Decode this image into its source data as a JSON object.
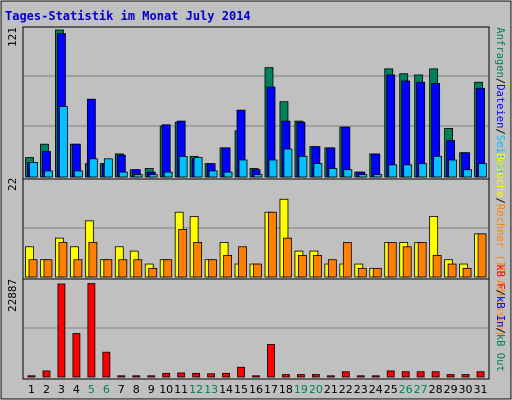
{
  "title": "Tages-Statistik im Monat July 2014",
  "colors": {
    "background": "#C0C0C0",
    "page_bg": "#FFFFFF",
    "title": "#0000CC",
    "hits": "#00805C",
    "files": "#0000FF",
    "pages": "#00C0FF",
    "visits": "#FFFF00",
    "sites": "#FF8000",
    "kbin": "#0000FF",
    "kbout": "#00805C",
    "kbf": "#FF0000",
    "weekend_day": "#00805C",
    "weekday_day": "#000000"
  },
  "chart_data": [
    {
      "type": "bar",
      "title": "Tages-Statistik im Monat July 2014",
      "panel": "top",
      "ymax_label": "121",
      "ylim": [
        0,
        121
      ],
      "categories": [
        "1",
        "2",
        "3",
        "4",
        "5",
        "6",
        "7",
        "8",
        "9",
        "10",
        "11",
        "12",
        "13",
        "14",
        "15",
        "16",
        "17",
        "18",
        "19",
        "20",
        "21",
        "22",
        "23",
        "24",
        "25",
        "26",
        "27",
        "28",
        "29",
        "30",
        "31"
      ],
      "side_label_parts": [
        "Anfragen",
        "/",
        "Dateien",
        "/",
        "Seiten"
      ],
      "series": [
        {
          "name": "Anfragen",
          "values": [
            16,
            27,
            121,
            27,
            11,
            11,
            19,
            6,
            7,
            42,
            45,
            17,
            11,
            24,
            38,
            7,
            90,
            62,
            46,
            25,
            24,
            41,
            4,
            19,
            89,
            85,
            84,
            89,
            40,
            20,
            78
          ]
        },
        {
          "name": "Dateien",
          "values": [
            12,
            21,
            118,
            27,
            64,
            11,
            18,
            6,
            4,
            43,
            46,
            15,
            11,
            24,
            55,
            6,
            74,
            46,
            45,
            25,
            24,
            41,
            4,
            19,
            84,
            79,
            78,
            77,
            30,
            20,
            73
          ]
        },
        {
          "name": "Seiten",
          "values": [
            12,
            5,
            58,
            5,
            15,
            15,
            4,
            2,
            2,
            4,
            17,
            16,
            5,
            4,
            14,
            2,
            14,
            23,
            17,
            11,
            7,
            6,
            2,
            2,
            10,
            10,
            11,
            17,
            14,
            6,
            11
          ]
        }
      ]
    },
    {
      "type": "bar",
      "panel": "middle",
      "ymax_label": "22",
      "ylim": [
        0,
        22
      ],
      "categories": [
        "1",
        "2",
        "3",
        "4",
        "5",
        "6",
        "7",
        "8",
        "9",
        "10",
        "11",
        "12",
        "13",
        "14",
        "15",
        "16",
        "17",
        "18",
        "19",
        "20",
        "21",
        "22",
        "23",
        "24",
        "25",
        "26",
        "27",
        "28",
        "29",
        "30",
        "31"
      ],
      "side_label_parts": [
        "Besuche",
        "/",
        "Rechner (IP-Adressen)"
      ],
      "series": [
        {
          "name": "Besuche",
          "values": [
            7,
            4,
            9,
            7,
            13,
            4,
            7,
            6,
            3,
            4,
            15,
            14,
            4,
            8,
            3,
            3,
            15,
            18,
            6,
            6,
            3,
            3,
            3,
            2,
            8,
            8,
            8,
            14,
            4,
            3,
            10
          ]
        },
        {
          "name": "Rechner (IP-Adressen)",
          "values": [
            4,
            4,
            8,
            4,
            8,
            4,
            4,
            4,
            2,
            4,
            11,
            8,
            4,
            5,
            7,
            3,
            15,
            9,
            5,
            5,
            4,
            8,
            2,
            2,
            8,
            7,
            8,
            5,
            3,
            2,
            10
          ]
        }
      ]
    },
    {
      "type": "bar",
      "panel": "bottom",
      "ymax_label": "22887",
      "ylim": [
        0,
        22887
      ],
      "categories": [
        "1",
        "2",
        "3",
        "4",
        "5",
        "6",
        "7",
        "8",
        "9",
        "10",
        "11",
        "12",
        "13",
        "14",
        "15",
        "16",
        "17",
        "18",
        "19",
        "20",
        "21",
        "22",
        "23",
        "24",
        "25",
        "26",
        "27",
        "28",
        "29",
        "30",
        "31"
      ],
      "weekend_days": [
        "5",
        "6",
        "12",
        "13",
        "19",
        "20",
        "26",
        "27"
      ],
      "side_label_parts": [
        "kB F",
        "/",
        "kB In",
        "/",
        "kB Out"
      ],
      "series": [
        {
          "name": "kB F",
          "values": [
            300,
            1500,
            22887,
            10700,
            23000,
            6100,
            300,
            300,
            300,
            900,
            1000,
            900,
            800,
            900,
            2400,
            300,
            8000,
            600,
            600,
            600,
            300,
            1300,
            300,
            300,
            1500,
            1300,
            1300,
            1300,
            600,
            600,
            1300
          ]
        }
      ]
    }
  ]
}
